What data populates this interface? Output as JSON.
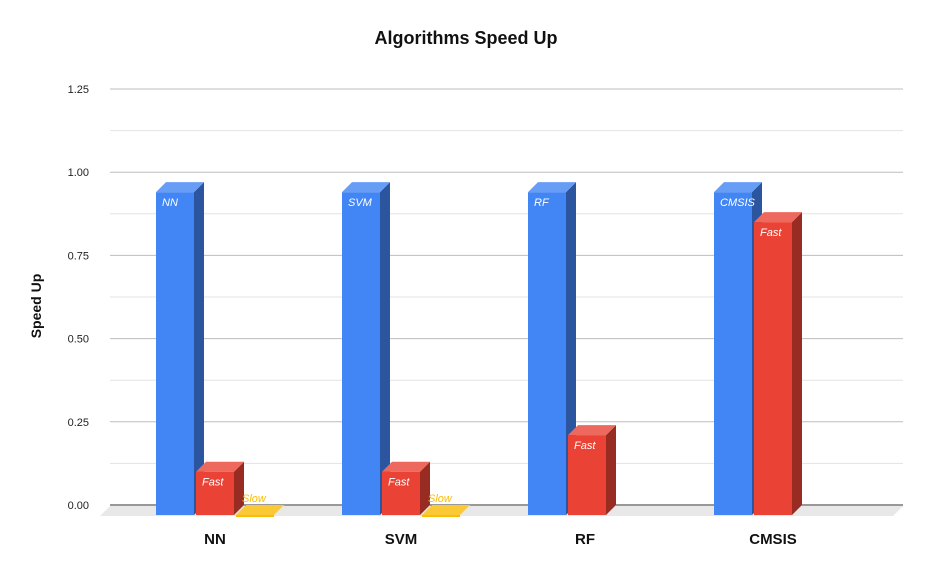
{
  "chart_data": {
    "type": "bar",
    "title": "Algorithms Speed Up",
    "xlabel": "",
    "ylabel": "Speed Up",
    "ylim": [
      0,
      1.25
    ],
    "yticks": [
      "0.00",
      "0.25",
      "0.50",
      "0.75",
      "1.00",
      "1.25"
    ],
    "categories": [
      "NN",
      "SVM",
      "RF",
      "CMSIS"
    ],
    "grid": true,
    "legend": "none",
    "style": "3d",
    "bars": [
      {
        "category": "NN",
        "label": "NN",
        "value": 0.97,
        "color": "#4285F4"
      },
      {
        "category": "NN",
        "label": "Fast",
        "value": 0.13,
        "color": "#EA4335"
      },
      {
        "category": "NN",
        "label": "Slow",
        "value": 0.0,
        "color": "#FBBC04"
      },
      {
        "category": "SVM",
        "label": "SVM",
        "value": 0.97,
        "color": "#4285F4"
      },
      {
        "category": "SVM",
        "label": "Fast",
        "value": 0.13,
        "color": "#EA4335"
      },
      {
        "category": "SVM",
        "label": "Slow",
        "value": 0.0,
        "color": "#FBBC04"
      },
      {
        "category": "RF",
        "label": "RF",
        "value": 0.97,
        "color": "#4285F4"
      },
      {
        "category": "RF",
        "label": "Fast",
        "value": 0.24,
        "color": "#EA4335"
      },
      {
        "category": "CMSIS",
        "label": "CMSIS",
        "value": 0.97,
        "color": "#4285F4"
      },
      {
        "category": "CMSIS",
        "label": "Fast",
        "value": 0.88,
        "color": "#EA4335"
      }
    ]
  }
}
